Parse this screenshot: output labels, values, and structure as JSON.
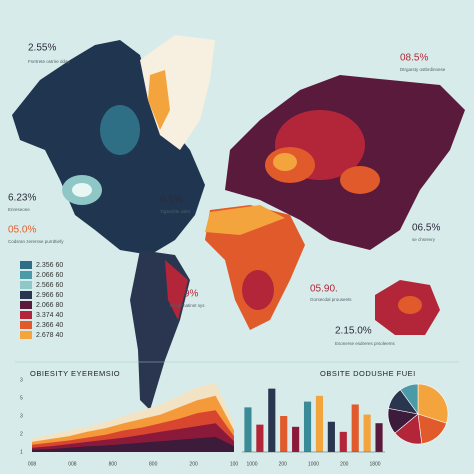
{
  "callouts": [
    {
      "value": "2.55%",
      "text": "Fsrrtrete ostrire dday"
    },
    {
      "value": "08.5%",
      "text": "Dtrgarsty ostbrdinnese"
    },
    {
      "value": "6.23%",
      "text": "Enreseone"
    },
    {
      "value": "05.0%",
      "text": "Codsran zerersse purrdtiefy"
    },
    {
      "value": "0.5%",
      "text": "Tigsechte oslet"
    },
    {
      "value": "06.5%",
      "text": "se chsrevry"
    },
    {
      "value": "65.9%",
      "text": "Pesarmatinnt sys"
    },
    {
      "value": "05.90.",
      "text": "Gorsecdal prouseets"
    },
    {
      "value": "2.15.0%",
      "text": "Esonerse esdreres prsoleems"
    }
  ],
  "legend": [
    {
      "label": "2.356 60",
      "color": "#2f6f86"
    },
    {
      "label": "2.066 60",
      "color": "#4a9aa8"
    },
    {
      "label": "2.566 60",
      "color": "#8fc7c7"
    },
    {
      "label": "2.966 60",
      "color": "#2a3550"
    },
    {
      "label": "2.066 80",
      "color": "#5a1a3c"
    },
    {
      "label": "3.374 40",
      "color": "#b3263a"
    },
    {
      "label": "2.366 40",
      "color": "#e05a2b"
    },
    {
      "label": "2.678 40",
      "color": "#f4a43c"
    }
  ],
  "area_chart": {
    "title": "OBIESITY EYEREMSIO",
    "ylim": [
      0,
      100
    ],
    "y_labels": [
      "3",
      "5",
      "3",
      "2",
      "1"
    ],
    "x_labels": [
      "008",
      "008",
      "800",
      "800",
      "200",
      "100"
    ],
    "series": [
      {
        "color": "#f1e3c4",
        "values": [
          20,
          24,
          30,
          35,
          42,
          50,
          58,
          66,
          78,
          90,
          96,
          40
        ]
      },
      {
        "color": "#f59a3a",
        "values": [
          14,
          18,
          22,
          28,
          33,
          40,
          46,
          52,
          62,
          72,
          78,
          30
        ]
      },
      {
        "color": "#d9462f",
        "values": [
          10,
          13,
          16,
          20,
          24,
          30,
          34,
          40,
          46,
          54,
          58,
          22
        ]
      },
      {
        "color": "#8b1a3a",
        "values": [
          6,
          8,
          11,
          14,
          17,
          20,
          24,
          28,
          32,
          36,
          40,
          15
        ]
      },
      {
        "color": "#3c1b3b",
        "values": [
          3,
          4,
          6,
          8,
          9,
          11,
          13,
          15,
          17,
          19,
          21,
          8
        ]
      }
    ]
  },
  "bar_chart": {
    "title": "OBSITE DODUSHE FUEI",
    "ylim": [
      0,
      100
    ],
    "x_labels": [
      "1000",
      "200",
      "1000",
      "200",
      "1800"
    ],
    "values": [
      62,
      38,
      88,
      50,
      35,
      70,
      78,
      42,
      28,
      66,
      52,
      40
    ],
    "colors": [
      "#3b8a98",
      "#b3263a",
      "#2a3550",
      "#e05a2b",
      "#8b1a3a",
      "#3b8a98",
      "#f4a43c",
      "#2a3550",
      "#b3263a",
      "#e05a2b",
      "#f4a43c",
      "#5a1a3c"
    ]
  },
  "pie": {
    "values": [
      30,
      18,
      16,
      14,
      12,
      10
    ],
    "colors": [
      "#f4a43c",
      "#e05a2b",
      "#b3263a",
      "#3c1b3b",
      "#2a3550",
      "#4a9aa8"
    ]
  }
}
